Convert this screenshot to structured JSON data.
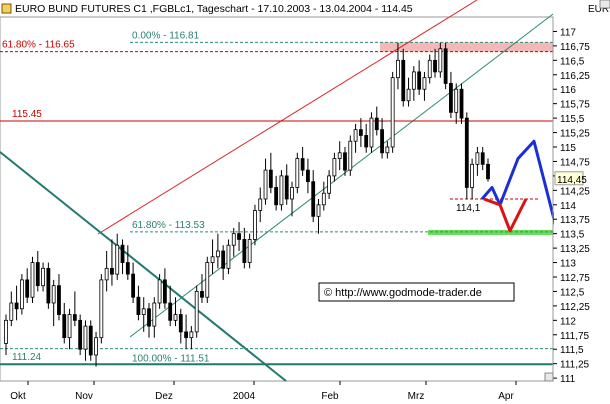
{
  "chart_data": {
    "type": "candlestick",
    "title": "EURO BUND FUTURES C1 ,FGBLc1, Tageschart - 17.10.2003 - 13.04.2004 - 114.45",
    "currency": "EUR",
    "watermark": "© http://www.godmode-trader.de",
    "x_tick_labels": [
      "Okt",
      "Nov",
      "Dez",
      "2004",
      "Feb",
      "Mrz",
      "Apr"
    ],
    "y_tick_labels": [
      "117",
      "116,75",
      "116,5",
      "116,25",
      "116",
      "115,75",
      "115,5",
      "115,25",
      "115",
      "114,75",
      "114,5",
      "114,25",
      "114",
      "113,75",
      "113,5",
      "113,25",
      "113",
      "112,75",
      "112,5",
      "112,25",
      "112",
      "111,75",
      "111,5",
      "111,25",
      "111"
    ],
    "ylim": [
      110.95,
      117.25
    ],
    "last_price": 114.45,
    "last_price_label": "114,45",
    "horizontal_levels": [
      {
        "label": "61.80% - 116.65",
        "value": 116.65,
        "color": "#cc0000",
        "style": "dashed"
      },
      {
        "label": "0.00% - 116.81",
        "value": 116.81,
        "color": "#2e8b7a",
        "style": "dashed"
      },
      {
        "label": "115.45",
        "value": 115.45,
        "color": "#cc0000",
        "style": "solid"
      },
      {
        "label": "61.80% - 113.53",
        "value": 113.53,
        "color": "#2e8b7a",
        "style": "dashed"
      },
      {
        "label": "100.00% - 111.51",
        "value": 111.51,
        "color": "#2e8b7a",
        "style": "dashed"
      },
      {
        "label": "111.24",
        "value": 111.24,
        "color": "#1f7a6c",
        "style": "solid"
      },
      {
        "label": "114,1",
        "value": 114.1,
        "color": "#cc0000",
        "style": "dashed"
      }
    ],
    "resistance_zone": [
      116.65,
      116.81
    ],
    "support_zone_value": 113.53,
    "projection_blue": [
      114.1,
      114.3,
      114.0,
      114.8,
      115.1,
      113.55
    ],
    "projection_red": [
      114.1,
      114.0,
      113.55,
      114.1
    ],
    "candles": [
      [
        111.6,
        112.1,
        111.4,
        112.0
      ],
      [
        112.0,
        112.5,
        111.9,
        112.3
      ],
      [
        112.3,
        112.6,
        112.0,
        112.2
      ],
      [
        112.2,
        112.8,
        112.1,
        112.7
      ],
      [
        112.7,
        112.9,
        112.3,
        112.4
      ],
      [
        112.4,
        113.1,
        112.3,
        113.0
      ],
      [
        113.0,
        113.2,
        112.5,
        112.6
      ],
      [
        112.6,
        113.0,
        112.5,
        112.9
      ],
      [
        112.9,
        113.0,
        112.2,
        112.3
      ],
      [
        112.3,
        112.7,
        111.9,
        112.6
      ],
      [
        112.6,
        112.8,
        112.0,
        112.1
      ],
      [
        112.1,
        112.3,
        111.6,
        111.7
      ],
      [
        111.7,
        112.2,
        111.5,
        112.1
      ],
      [
        112.1,
        112.5,
        111.9,
        112.0
      ],
      [
        112.0,
        112.1,
        111.4,
        111.5
      ],
      [
        111.5,
        112.0,
        111.3,
        111.9
      ],
      [
        111.9,
        112.0,
        111.3,
        111.4
      ],
      [
        111.4,
        111.8,
        111.2,
        111.7
      ],
      [
        111.7,
        112.8,
        111.6,
        112.7
      ],
      [
        112.7,
        113.2,
        112.5,
        112.9
      ],
      [
        112.9,
        113.4,
        112.6,
        112.8
      ],
      [
        112.8,
        113.5,
        112.7,
        113.3
      ],
      [
        113.3,
        113.4,
        112.8,
        113.0
      ],
      [
        113.0,
        113.3,
        112.7,
        112.8
      ],
      [
        112.8,
        113.0,
        112.3,
        112.4
      ],
      [
        112.4,
        112.6,
        112.0,
        112.1
      ],
      [
        112.1,
        112.4,
        111.8,
        112.2
      ],
      [
        112.2,
        112.3,
        111.7,
        111.9
      ],
      [
        111.9,
        112.4,
        111.7,
        112.3
      ],
      [
        112.3,
        112.8,
        112.2,
        112.7
      ],
      [
        112.7,
        112.9,
        112.2,
        112.3
      ],
      [
        112.3,
        112.6,
        111.9,
        112.0
      ],
      [
        112.0,
        112.4,
        111.9,
        112.1
      ],
      [
        112.1,
        112.2,
        111.6,
        111.8
      ],
      [
        111.8,
        112.1,
        111.5,
        111.7
      ],
      [
        111.7,
        111.9,
        111.5,
        111.8
      ],
      [
        111.8,
        112.6,
        111.7,
        112.5
      ],
      [
        112.5,
        112.8,
        112.3,
        112.4
      ],
      [
        112.4,
        113.1,
        112.3,
        113.0
      ],
      [
        113.0,
        113.4,
        112.8,
        113.1
      ],
      [
        113.1,
        113.5,
        112.9,
        113.2
      ],
      [
        113.2,
        113.3,
        112.7,
        112.9
      ],
      [
        112.9,
        113.4,
        112.8,
        113.3
      ],
      [
        113.3,
        113.6,
        113.1,
        113.5
      ],
      [
        113.5,
        113.7,
        113.2,
        113.4
      ],
      [
        113.4,
        113.6,
        112.9,
        113.0
      ],
      [
        113.0,
        113.5,
        112.9,
        113.4
      ],
      [
        113.4,
        114.0,
        113.3,
        113.9
      ],
      [
        113.9,
        114.3,
        113.7,
        114.1
      ],
      [
        114.1,
        114.8,
        114.0,
        114.6
      ],
      [
        114.6,
        114.9,
        114.2,
        114.3
      ],
      [
        114.3,
        114.5,
        113.9,
        114.0
      ],
      [
        114.0,
        114.6,
        113.9,
        114.5
      ],
      [
        114.5,
        114.7,
        114.0,
        114.1
      ],
      [
        114.1,
        114.4,
        113.8,
        114.3
      ],
      [
        114.3,
        114.9,
        114.2,
        114.8
      ],
      [
        114.8,
        115.0,
        114.5,
        114.6
      ],
      [
        114.6,
        114.8,
        114.2,
        114.4
      ],
      [
        114.4,
        114.6,
        113.7,
        113.8
      ],
      [
        113.8,
        114.1,
        113.5,
        114.0
      ],
      [
        114.0,
        114.4,
        113.9,
        114.2
      ],
      [
        114.2,
        114.6,
        114.1,
        114.5
      ],
      [
        114.5,
        114.9,
        114.4,
        114.8
      ],
      [
        114.8,
        115.1,
        114.6,
        114.9
      ],
      [
        114.9,
        115.0,
        114.5,
        114.6
      ],
      [
        114.6,
        115.2,
        114.5,
        115.1
      ],
      [
        115.1,
        115.4,
        114.9,
        115.3
      ],
      [
        115.3,
        115.5,
        115.0,
        115.2
      ],
      [
        115.2,
        115.4,
        114.9,
        115.0
      ],
      [
        115.0,
        115.6,
        114.9,
        115.5
      ],
      [
        115.5,
        115.7,
        115.2,
        115.3
      ],
      [
        115.3,
        115.5,
        114.8,
        114.9
      ],
      [
        114.9,
        115.1,
        114.8,
        115.0
      ],
      [
        115.0,
        116.3,
        114.9,
        116.2
      ],
      [
        116.2,
        116.8,
        116.0,
        116.5
      ],
      [
        116.5,
        116.7,
        115.7,
        115.8
      ],
      [
        115.8,
        116.2,
        115.7,
        116.0
      ],
      [
        116.0,
        116.4,
        115.8,
        116.3
      ],
      [
        116.3,
        116.5,
        115.9,
        116.0
      ],
      [
        116.0,
        116.3,
        115.8,
        116.2
      ],
      [
        116.2,
        116.6,
        116.1,
        116.5
      ],
      [
        116.5,
        116.7,
        116.2,
        116.3
      ],
      [
        116.3,
        116.8,
        116.2,
        116.7
      ],
      [
        116.7,
        116.8,
        116.0,
        116.1
      ],
      [
        116.1,
        116.3,
        115.5,
        115.6
      ],
      [
        115.6,
        116.1,
        115.4,
        116.0
      ],
      [
        116.0,
        116.1,
        115.4,
        115.5
      ],
      [
        115.5,
        115.6,
        114.1,
        114.3
      ],
      [
        114.3,
        114.8,
        114.1,
        114.7
      ],
      [
        114.7,
        115.0,
        114.5,
        114.9
      ],
      [
        114.9,
        115.0,
        114.6,
        114.7
      ],
      [
        114.7,
        114.8,
        114.4,
        114.45
      ]
    ]
  }
}
